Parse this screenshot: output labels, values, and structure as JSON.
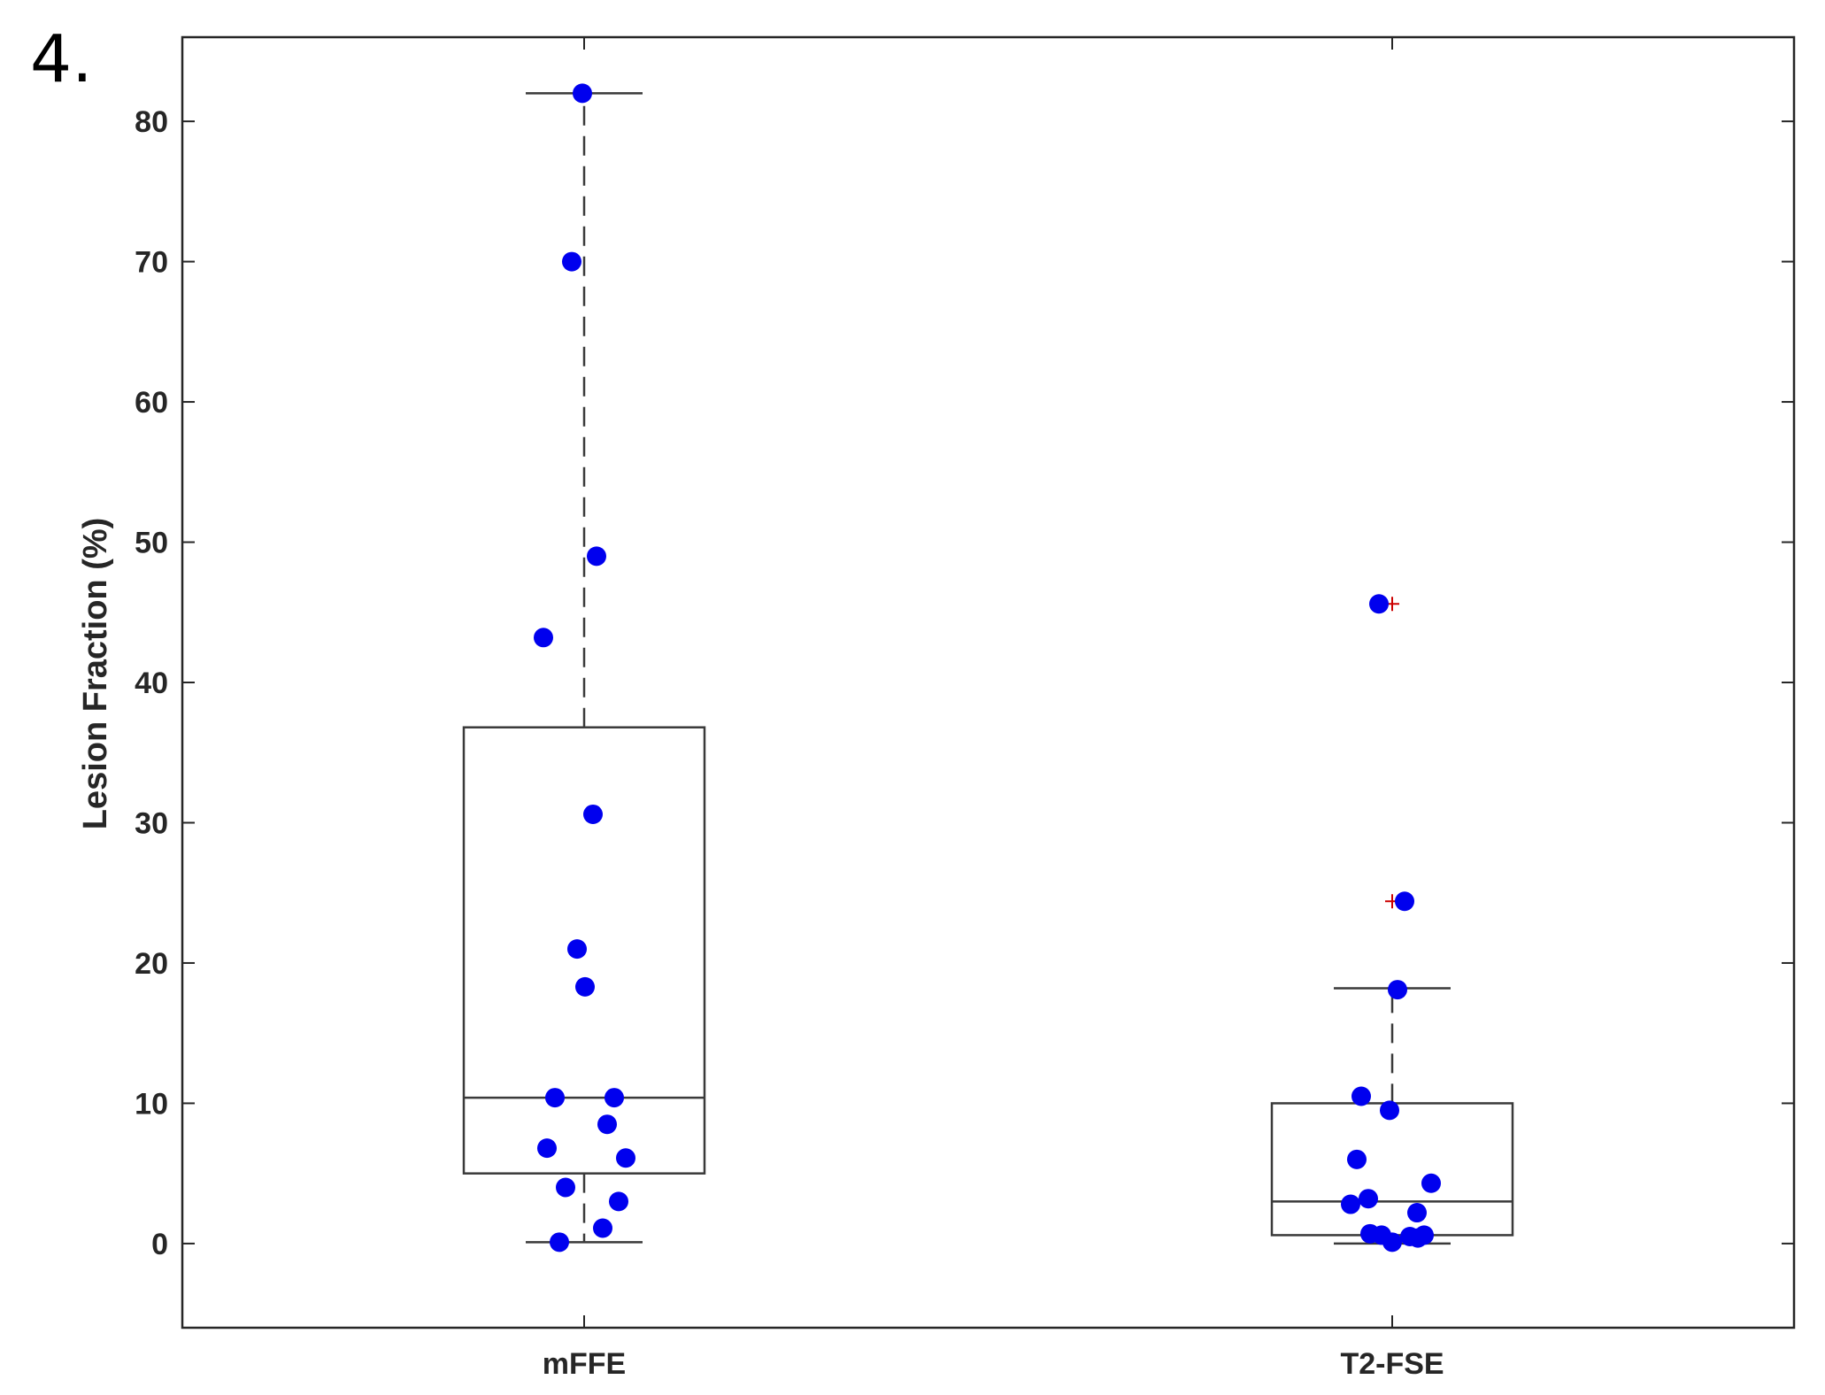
{
  "figure": {
    "panel_label": "4."
  },
  "chart_data": {
    "type": "box",
    "title": "",
    "xlabel": "",
    "ylabel": "Lesion Fraction (%)",
    "ylim": [
      -6,
      86
    ],
    "yticks": [
      0,
      10,
      20,
      30,
      40,
      50,
      60,
      70,
      80
    ],
    "grid": false,
    "categories": [
      "mFFE",
      "T2-FSE"
    ],
    "colors": {
      "points": "#0000ee",
      "outlier": "#cc0000",
      "box": "#3a3a3a",
      "axes": "#262626"
    },
    "boxes": [
      {
        "name": "mFFE",
        "q1": 5.0,
        "median": 10.4,
        "q3": 36.8,
        "whisker_low": 0.1,
        "whisker_high": 82.0,
        "outliers": []
      },
      {
        "name": "T2-FSE",
        "q1": 0.6,
        "median": 3.0,
        "q3": 10.0,
        "whisker_low": 0.0,
        "whisker_high": 18.2,
        "outliers": [
          45.6,
          24.4
        ]
      }
    ],
    "points": [
      {
        "category": "mFFE",
        "values": [
          82.0,
          70.0,
          49.0,
          43.2,
          30.6,
          21.0,
          18.3,
          10.4,
          10.4,
          8.5,
          6.8,
          6.1,
          4.0,
          3.0,
          1.1,
          0.1
        ]
      },
      {
        "category": "T2-FSE",
        "values": [
          45.6,
          24.4,
          18.1,
          10.5,
          9.5,
          6.0,
          4.3,
          3.2,
          2.8,
          2.2,
          0.7,
          0.6,
          0.6,
          0.5,
          0.4,
          0.1
        ]
      }
    ]
  }
}
